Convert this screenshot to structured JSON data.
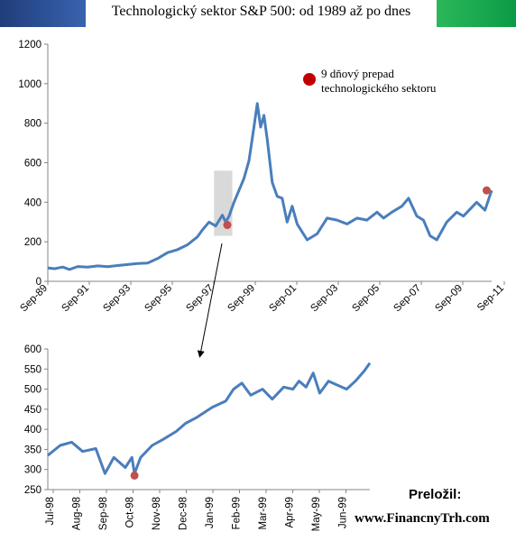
{
  "title": "Technologický sektor S&P 500: od 1989 až po dnes",
  "legend": {
    "label": "9 dňový prepad technologického sektoru",
    "marker_color": "#c00000"
  },
  "footer": {
    "translated_by": "Preložil:",
    "website": "www.FinancnyTrh.com"
  },
  "colors": {
    "line": "#4a7ebb",
    "marker": "#c0504d",
    "highlight": "#d9d9d9",
    "header_left": "#2a4f96",
    "header_right": "#1aab50"
  },
  "chart_data": [
    {
      "type": "line",
      "title": "Technologický sektor S&P 500: od 1989 až po dnes",
      "xlabel": "",
      "ylabel": "",
      "ylim": [
        0,
        1200
      ],
      "yticks": [
        0,
        200,
        400,
        600,
        800,
        1000,
        1200
      ],
      "x_tick_labels": [
        "Sep-89",
        "Sep-91",
        "Sep-93",
        "Sep-95",
        "Sep-97",
        "Sep-99",
        "Sep-01",
        "Sep-03",
        "Sep-05",
        "Sep-07",
        "Sep-09",
        "Sep-11"
      ],
      "x_range": [
        "1989-09",
        "2011-12"
      ],
      "grid": false,
      "series": [
        {
          "x": [
            "1989-09",
            "1990-01",
            "1990-06",
            "1990-10",
            "1991-03",
            "1991-09",
            "1992-03",
            "1992-09",
            "1993-03",
            "1993-09",
            "1994-03",
            "1994-09",
            "1995-03",
            "1995-09",
            "1996-03",
            "1996-09",
            "1997-03",
            "1997-06",
            "1997-10",
            "1998-02",
            "1998-06",
            "1998-08",
            "1998-10",
            "1999-01",
            "1999-04",
            "1999-07",
            "1999-10",
            "2000-01",
            "2000-03",
            "2000-05",
            "2000-07",
            "2000-09",
            "2000-12",
            "2001-03",
            "2001-06",
            "2001-09",
            "2001-12",
            "2002-03",
            "2002-06",
            "2002-09",
            "2003-03",
            "2003-09",
            "2004-03",
            "2004-09",
            "2005-03",
            "2005-09",
            "2006-03",
            "2006-07",
            "2006-12",
            "2007-06",
            "2007-10",
            "2008-03",
            "2008-07",
            "2008-11",
            "2009-03",
            "2009-09",
            "2010-03",
            "2010-07",
            "2011-03",
            "2011-08",
            "2011-12"
          ],
          "values": [
            68,
            64,
            72,
            60,
            75,
            72,
            78,
            74,
            80,
            85,
            90,
            92,
            115,
            145,
            160,
            185,
            225,
            260,
            300,
            280,
            335,
            300,
            330,
            400,
            460,
            520,
            610,
            780,
            900,
            780,
            840,
            720,
            500,
            430,
            420,
            300,
            380,
            290,
            250,
            210,
            240,
            320,
            310,
            290,
            320,
            310,
            350,
            320,
            350,
            380,
            420,
            330,
            310,
            230,
            210,
            300,
            350,
            330,
            400,
            360,
            460
          ]
        }
      ],
      "highlight": {
        "from": "1998-01",
        "to": "1998-12"
      },
      "highlighted_points": [
        {
          "x": "1998-09",
          "y": 285
        },
        {
          "x": "2011-09",
          "y": 460
        }
      ]
    },
    {
      "type": "line",
      "ylim": [
        250,
        600
      ],
      "yticks": [
        250,
        300,
        350,
        400,
        450,
        500,
        550,
        600
      ],
      "x_tick_labels": [
        "Jul-98",
        "Aug-98",
        "Sep-98",
        "Oct-98",
        "Nov-98",
        "Dec-98",
        "Jan-99",
        "Feb-99",
        "Mar-99",
        "Apr-99",
        "May-99",
        "Jun-99"
      ],
      "x_range": [
        "1998-07",
        "1999-07"
      ],
      "grid": false,
      "series": [
        {
          "x": [
            "1998-07-01",
            "1998-07-15",
            "1998-07-28",
            "1998-08-10",
            "1998-08-25",
            "1998-09-05",
            "1998-09-15",
            "1998-09-28",
            "1998-10-05",
            "1998-10-08",
            "1998-10-15",
            "1998-10-28",
            "1998-11-10",
            "1998-11-25",
            "1998-12-05",
            "1998-12-18",
            "1999-01-05",
            "1999-01-20",
            "1999-01-29",
            "1999-02-08",
            "1999-02-18",
            "1999-03-01",
            "1999-03-12",
            "1999-03-25",
            "1999-04-05",
            "1999-04-12",
            "1999-04-20",
            "1999-04-28",
            "1999-05-05",
            "1999-05-15",
            "1999-05-25",
            "1999-06-05",
            "1999-06-15",
            "1999-06-25",
            "1999-07-01"
          ],
          "values": [
            335,
            360,
            368,
            345,
            352,
            290,
            330,
            305,
            330,
            290,
            330,
            360,
            375,
            395,
            415,
            430,
            455,
            470,
            500,
            515,
            485,
            500,
            475,
            505,
            500,
            520,
            505,
            540,
            490,
            520,
            510,
            500,
            520,
            545,
            565
          ]
        }
      ],
      "highlighted_points": [
        {
          "x": "1998-10-08",
          "y": 285
        }
      ]
    }
  ]
}
